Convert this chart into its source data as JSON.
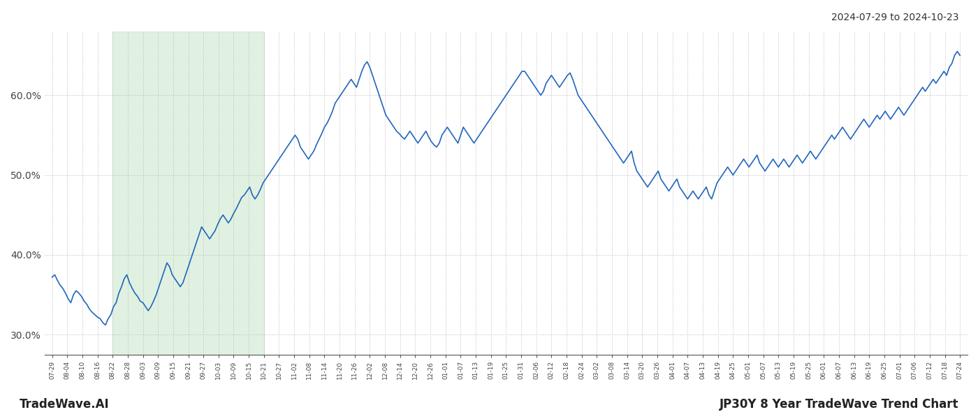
{
  "title_top_right": "2024-07-29 to 2024-10-23",
  "title_bottom_left": "TradeWave.AI",
  "title_bottom_right": "JP30Y 8 Year TradeWave Trend Chart",
  "line_color": "#2266bb",
  "line_width": 1.2,
  "shaded_region_color": "#c8e6c9",
  "shaded_region_alpha": 0.55,
  "background_color": "#ffffff",
  "grid_color": "#bbbbbb",
  "ylim": [
    27.5,
    68.0
  ],
  "yticks": [
    30.0,
    40.0,
    50.0,
    60.0
  ],
  "xtick_labels": [
    "07-29",
    "08-04",
    "08-10",
    "08-16",
    "08-22",
    "08-28",
    "09-03",
    "09-09",
    "09-15",
    "09-21",
    "09-27",
    "10-03",
    "10-09",
    "10-15",
    "10-21",
    "10-27",
    "11-02",
    "11-08",
    "11-14",
    "11-20",
    "11-26",
    "12-02",
    "12-08",
    "12-14",
    "12-20",
    "12-26",
    "01-01",
    "01-07",
    "01-13",
    "01-19",
    "01-25",
    "01-31",
    "02-06",
    "02-12",
    "02-18",
    "02-24",
    "03-02",
    "03-08",
    "03-14",
    "03-20",
    "03-26",
    "04-01",
    "04-07",
    "04-13",
    "04-19",
    "04-25",
    "05-01",
    "05-07",
    "05-13",
    "05-19",
    "05-25",
    "06-01",
    "06-07",
    "06-13",
    "06-19",
    "06-25",
    "07-01",
    "07-06",
    "07-12",
    "07-18",
    "07-24"
  ],
  "shaded_start_label": "08-22",
  "shaded_end_label": "10-21",
  "values": [
    37.2,
    37.5,
    36.8,
    36.2,
    35.8,
    35.2,
    34.5,
    34.0,
    35.0,
    35.5,
    35.2,
    34.8,
    34.2,
    33.8,
    33.2,
    32.8,
    32.5,
    32.2,
    32.0,
    31.5,
    31.2,
    32.0,
    32.5,
    33.5,
    34.0,
    35.2,
    36.0,
    37.0,
    37.5,
    36.5,
    35.8,
    35.2,
    34.8,
    34.2,
    34.0,
    33.5,
    33.0,
    33.5,
    34.2,
    35.0,
    36.0,
    37.0,
    38.0,
    39.0,
    38.5,
    37.5,
    37.0,
    36.5,
    36.0,
    36.5,
    37.5,
    38.5,
    39.5,
    40.5,
    41.5,
    42.5,
    43.5,
    43.0,
    42.5,
    42.0,
    42.5,
    43.0,
    43.8,
    44.5,
    45.0,
    44.5,
    44.0,
    44.5,
    45.2,
    45.8,
    46.5,
    47.2,
    47.5,
    48.0,
    48.5,
    47.5,
    47.0,
    47.5,
    48.2,
    49.0,
    49.5,
    50.0,
    50.5,
    51.0,
    51.5,
    52.0,
    52.5,
    53.0,
    53.5,
    54.0,
    54.5,
    55.0,
    54.5,
    53.5,
    53.0,
    52.5,
    52.0,
    52.5,
    53.0,
    53.8,
    54.5,
    55.2,
    56.0,
    56.5,
    57.2,
    58.0,
    59.0,
    59.5,
    60.0,
    60.5,
    61.0,
    61.5,
    62.0,
    61.5,
    61.0,
    62.0,
    63.0,
    63.8,
    64.2,
    63.5,
    62.5,
    61.5,
    60.5,
    59.5,
    58.5,
    57.5,
    57.0,
    56.5,
    56.0,
    55.5,
    55.2,
    54.8,
    54.5,
    55.0,
    55.5,
    55.0,
    54.5,
    54.0,
    54.5,
    55.0,
    55.5,
    54.8,
    54.2,
    53.8,
    53.5,
    54.0,
    55.0,
    55.5,
    56.0,
    55.5,
    55.0,
    54.5,
    54.0,
    55.0,
    56.0,
    55.5,
    55.0,
    54.5,
    54.0,
    54.5,
    55.0,
    55.5,
    56.0,
    56.5,
    57.0,
    57.5,
    58.0,
    58.5,
    59.0,
    59.5,
    60.0,
    60.5,
    61.0,
    61.5,
    62.0,
    62.5,
    63.0,
    63.0,
    62.5,
    62.0,
    61.5,
    61.0,
    60.5,
    60.0,
    60.5,
    61.5,
    62.0,
    62.5,
    62.0,
    61.5,
    61.0,
    61.5,
    62.0,
    62.5,
    62.8,
    62.0,
    61.0,
    60.0,
    59.5,
    59.0,
    58.5,
    58.0,
    57.5,
    57.0,
    56.5,
    56.0,
    55.5,
    55.0,
    54.5,
    54.0,
    53.5,
    53.0,
    52.5,
    52.0,
    51.5,
    52.0,
    52.5,
    53.0,
    51.5,
    50.5,
    50.0,
    49.5,
    49.0,
    48.5,
    49.0,
    49.5,
    50.0,
    50.5,
    49.5,
    49.0,
    48.5,
    48.0,
    48.5,
    49.0,
    49.5,
    48.5,
    48.0,
    47.5,
    47.0,
    47.5,
    48.0,
    47.5,
    47.0,
    47.5,
    48.0,
    48.5,
    47.5,
    47.0,
    48.0,
    49.0,
    49.5,
    50.0,
    50.5,
    51.0,
    50.5,
    50.0,
    50.5,
    51.0,
    51.5,
    52.0,
    51.5,
    51.0,
    51.5,
    52.0,
    52.5,
    51.5,
    51.0,
    50.5,
    51.0,
    51.5,
    52.0,
    51.5,
    51.0,
    51.5,
    52.0,
    51.5,
    51.0,
    51.5,
    52.0,
    52.5,
    52.0,
    51.5,
    52.0,
    52.5,
    53.0,
    52.5,
    52.0,
    52.5,
    53.0,
    53.5,
    54.0,
    54.5,
    55.0,
    54.5,
    55.0,
    55.5,
    56.0,
    55.5,
    55.0,
    54.5,
    55.0,
    55.5,
    56.0,
    56.5,
    57.0,
    56.5,
    56.0,
    56.5,
    57.0,
    57.5,
    57.0,
    57.5,
    58.0,
    57.5,
    57.0,
    57.5,
    58.0,
    58.5,
    58.0,
    57.5,
    58.0,
    58.5,
    59.0,
    59.5,
    60.0,
    60.5,
    61.0,
    60.5,
    61.0,
    61.5,
    62.0,
    61.5,
    62.0,
    62.5,
    63.0,
    62.5,
    63.5,
    64.0,
    65.0,
    65.5,
    65.0
  ]
}
